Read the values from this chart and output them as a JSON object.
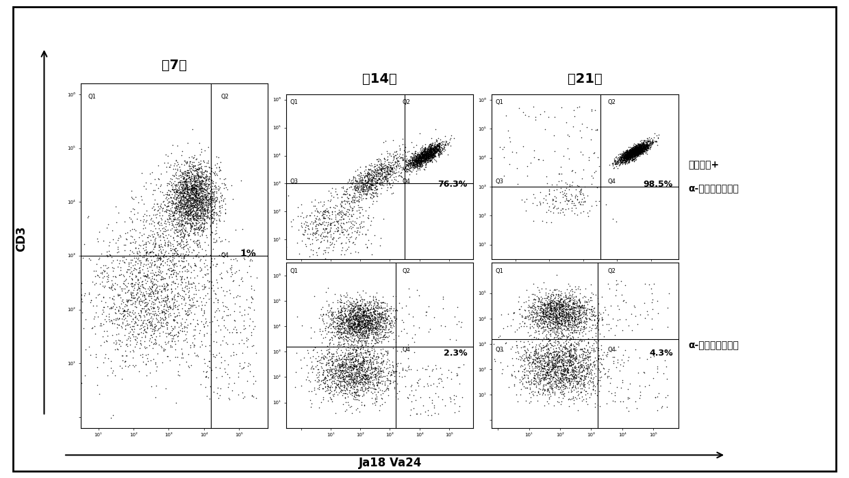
{
  "title_day7": "猂7天",
  "title_day14": "猂14天",
  "title_day21": "猂21天",
  "label_cd3": "CD3",
  "label_ja18va24": "Ja18 Va24",
  "label_row1_line1": "宿主细胞+",
  "label_row1_line2": "α-半乳糖神经酰胺",
  "label_row2": "α-半乳糖神经酰胺",
  "pct_day7": "1%",
  "pct_day14_row1": "76.3%",
  "pct_day14_row2": "2.3%",
  "pct_day21_row1": "98.5%",
  "pct_day21_row2": "4.3%",
  "bg_color": "#ffffff",
  "dot_color": "#000000",
  "seed": 42,
  "dot_size": 1.2,
  "dot_alpha": 0.85
}
